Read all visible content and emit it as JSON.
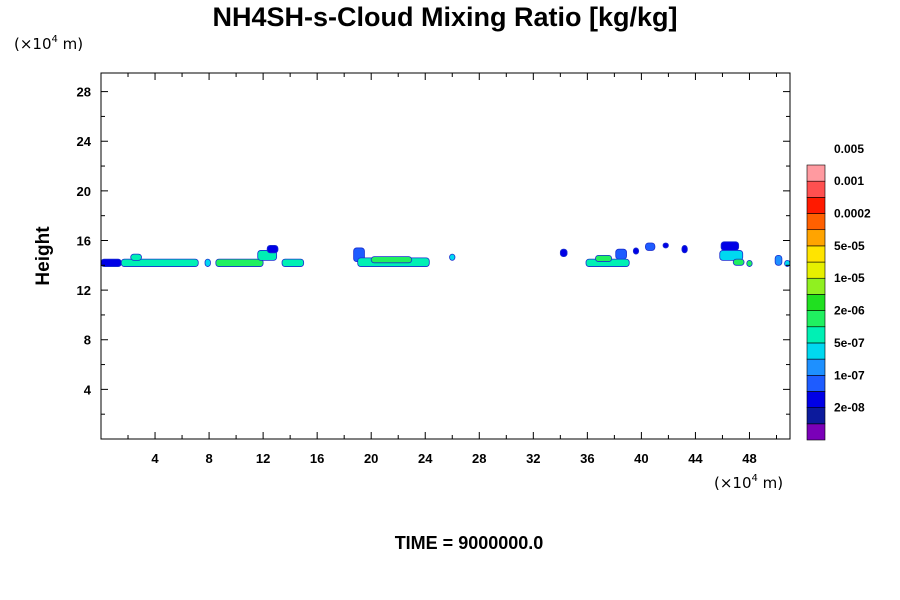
{
  "chart_data": {
    "type": "heatmap",
    "title": "NH4SH-s-Cloud Mixing Ratio [kg/kg]",
    "ylabel": "Height",
    "xlabel": "",
    "x_unit": {
      "prefix": "(×10",
      "exponent": "4",
      "suffix": " m)"
    },
    "y_unit": {
      "prefix": "(×10",
      "exponent": "4",
      "suffix": " m)"
    },
    "xlim": [
      0,
      51
    ],
    "ylim": [
      0,
      29.5
    ],
    "x_ticks": [
      4,
      8,
      12,
      16,
      20,
      24,
      28,
      32,
      36,
      40,
      44,
      48
    ],
    "y_ticks": [
      4,
      8,
      12,
      16,
      20,
      24,
      28
    ],
    "x_minor_step": 2,
    "y_minor_step": 2,
    "footer": "TIME = 9000000.0",
    "colorbar": {
      "colors": [
        "#7a00b8",
        "#0c1a9c",
        "#0000e6",
        "#1e5cff",
        "#1e90ff",
        "#00d8f0",
        "#00f0b4",
        "#20f060",
        "#20e020",
        "#90f020",
        "#e6f000",
        "#ffe400",
        "#ffa400",
        "#ff6000",
        "#ff1a00",
        "#ff5050",
        "#ff9aa0"
      ],
      "labels": [
        "2e-08",
        "1e-07",
        "5e-07",
        "2e-06",
        "1e-05",
        "5e-05",
        "0.0002",
        "0.001",
        "0.005"
      ]
    },
    "cloud_patches": [
      {
        "x0": 0.0,
        "x1": 1.5,
        "y0": 13.9,
        "y1": 14.5,
        "level": 2
      },
      {
        "x0": 1.5,
        "x1": 7.2,
        "y0": 13.9,
        "y1": 14.5,
        "level": 6
      },
      {
        "x0": 2.2,
        "x1": 3.0,
        "y0": 14.4,
        "y1": 14.9,
        "level": 6
      },
      {
        "x0": 7.7,
        "x1": 8.1,
        "y0": 13.9,
        "y1": 14.5,
        "level": 5
      },
      {
        "x0": 8.5,
        "x1": 12.0,
        "y0": 13.9,
        "y1": 14.5,
        "level": 7
      },
      {
        "x0": 11.6,
        "x1": 13.0,
        "y0": 14.4,
        "y1": 15.2,
        "level": 6
      },
      {
        "x0": 12.3,
        "x1": 13.1,
        "y0": 15.0,
        "y1": 15.6,
        "level": 2
      },
      {
        "x0": 13.4,
        "x1": 15.0,
        "y0": 13.9,
        "y1": 14.5,
        "level": 6
      },
      {
        "x0": 18.7,
        "x1": 19.5,
        "y0": 14.3,
        "y1": 15.4,
        "level": 3
      },
      {
        "x0": 19.0,
        "x1": 24.3,
        "y0": 13.9,
        "y1": 14.6,
        "level": 6
      },
      {
        "x0": 20.0,
        "x1": 23.0,
        "y0": 14.2,
        "y1": 14.7,
        "level": 7
      },
      {
        "x0": 25.8,
        "x1": 26.2,
        "y0": 14.4,
        "y1": 14.9,
        "level": 5
      },
      {
        "x0": 34.0,
        "x1": 34.5,
        "y0": 14.7,
        "y1": 15.3,
        "level": 2
      },
      {
        "x0": 35.9,
        "x1": 39.1,
        "y0": 13.9,
        "y1": 14.5,
        "level": 6
      },
      {
        "x0": 36.6,
        "x1": 37.8,
        "y0": 14.3,
        "y1": 14.8,
        "level": 7
      },
      {
        "x0": 38.1,
        "x1": 38.9,
        "y0": 14.5,
        "y1": 15.3,
        "level": 3
      },
      {
        "x0": 39.4,
        "x1": 39.8,
        "y0": 14.9,
        "y1": 15.4,
        "level": 2
      },
      {
        "x0": 40.3,
        "x1": 41.0,
        "y0": 15.2,
        "y1": 15.8,
        "level": 3
      },
      {
        "x0": 41.6,
        "x1": 42.0,
        "y0": 15.4,
        "y1": 15.8,
        "level": 2
      },
      {
        "x0": 43.0,
        "x1": 43.4,
        "y0": 15.0,
        "y1": 15.6,
        "level": 2
      },
      {
        "x0": 45.9,
        "x1": 47.2,
        "y0": 15.2,
        "y1": 15.9,
        "level": 2
      },
      {
        "x0": 45.8,
        "x1": 47.5,
        "y0": 14.4,
        "y1": 15.2,
        "level": 5
      },
      {
        "x0": 46.8,
        "x1": 47.6,
        "y0": 14.0,
        "y1": 14.5,
        "level": 7
      },
      {
        "x0": 47.8,
        "x1": 48.2,
        "y0": 13.9,
        "y1": 14.4,
        "level": 7
      },
      {
        "x0": 49.9,
        "x1": 50.4,
        "y0": 14.0,
        "y1": 14.8,
        "level": 4
      },
      {
        "x0": 50.6,
        "x1": 51.0,
        "y0": 13.9,
        "y1": 14.4,
        "level": 5
      }
    ]
  }
}
